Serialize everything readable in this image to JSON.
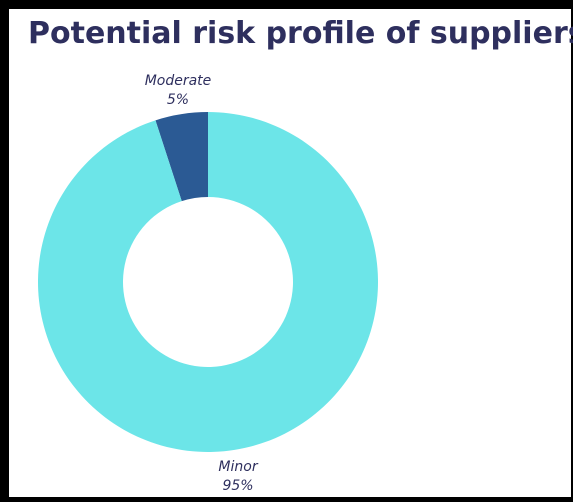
{
  "chart_data": {
    "type": "pie",
    "title": "Potential risk profile of suppliers",
    "slices": [
      {
        "label": "Moderate",
        "value": 5,
        "value_label": "5%",
        "color": "#2b5a94"
      },
      {
        "label": "Minor",
        "value": 95,
        "value_label": "95%",
        "color": "#6ce5e8"
      }
    ]
  }
}
